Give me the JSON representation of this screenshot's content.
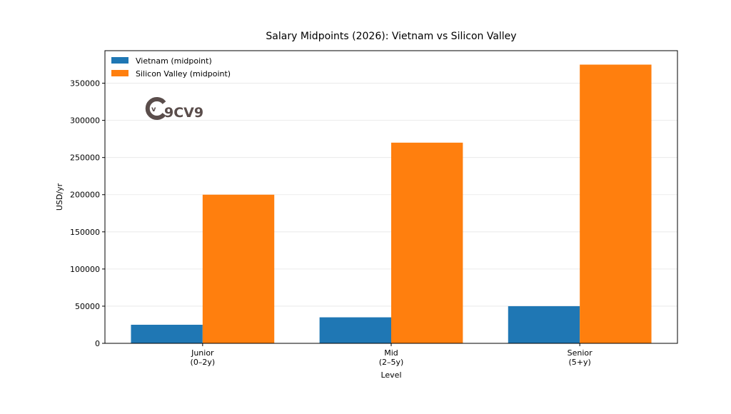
{
  "chart_data": {
    "type": "bar",
    "title": "Salary Midpoints (2026): Vietnam vs Silicon Valley",
    "xlabel": "Level",
    "ylabel": "USD/yr",
    "categories": [
      [
        "Junior",
        "(0–2y)"
      ],
      [
        "Mid",
        "(2–5y)"
      ],
      [
        "Senior",
        "(5+y)"
      ]
    ],
    "series": [
      {
        "name": "Vietnam (midpoint)",
        "color": "#1f77b4",
        "values": [
          25000,
          35000,
          50000
        ]
      },
      {
        "name": "Silicon Valley (midpoint)",
        "color": "#ff7f0e",
        "values": [
          200000,
          270000,
          375000
        ]
      }
    ],
    "ylim": [
      0,
      393750
    ],
    "yticks": [
      0,
      50000,
      100000,
      150000,
      200000,
      250000,
      300000,
      350000
    ],
    "grid": "horizontal",
    "legend_placement": "upper-left",
    "watermark": "9CV9"
  }
}
